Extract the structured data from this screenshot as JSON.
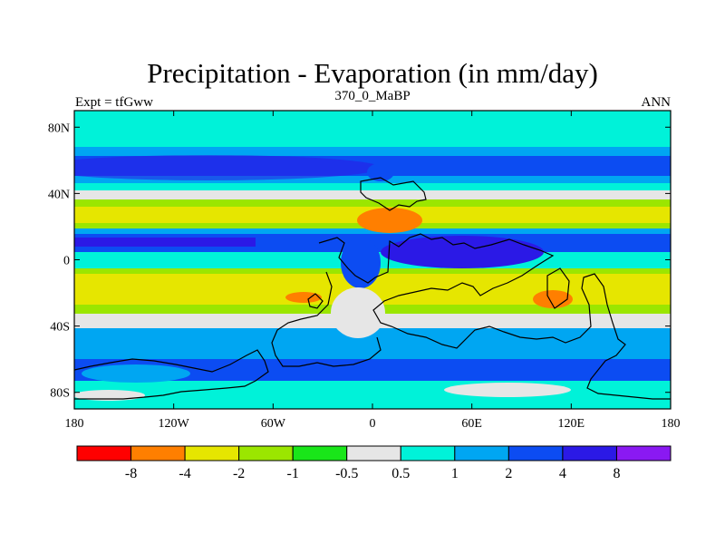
{
  "title": "Precipitation - Evaporation (in mm/day)",
  "subtitle_center": "370_0_MaBP",
  "subtitle_left": "Expt = tfGww",
  "subtitle_right": "ANN",
  "map": {
    "lon_range": [
      -180,
      180
    ],
    "lat_range": [
      -90,
      90
    ],
    "x_ticks": [
      {
        "value": -180,
        "label": "180"
      },
      {
        "value": -120,
        "label": "120W"
      },
      {
        "value": -60,
        "label": "60W"
      },
      {
        "value": 0,
        "label": "0"
      },
      {
        "value": 60,
        "label": "60E"
      },
      {
        "value": 120,
        "label": "120E"
      },
      {
        "value": 180,
        "label": "180"
      }
    ],
    "y_ticks": [
      {
        "value": 80,
        "label": "80N"
      },
      {
        "value": 40,
        "label": "40N"
      },
      {
        "value": 0,
        "label": "0"
      },
      {
        "value": -40,
        "label": "40S"
      },
      {
        "value": -80,
        "label": "80S"
      }
    ]
  },
  "colorbar": {
    "colors": [
      "#ff0000",
      "#ff7f00",
      "#e6e600",
      "#9be600",
      "#19e619",
      "#e6e6e6",
      "#00f2d9",
      "#00a6f2",
      "#0c4cf2",
      "#2b19e6",
      "#8a19f2"
    ],
    "labels": [
      "-8",
      "-4",
      "-2",
      "-1",
      "-0.5",
      "0.5",
      "1",
      "2",
      "4",
      "8"
    ]
  }
}
